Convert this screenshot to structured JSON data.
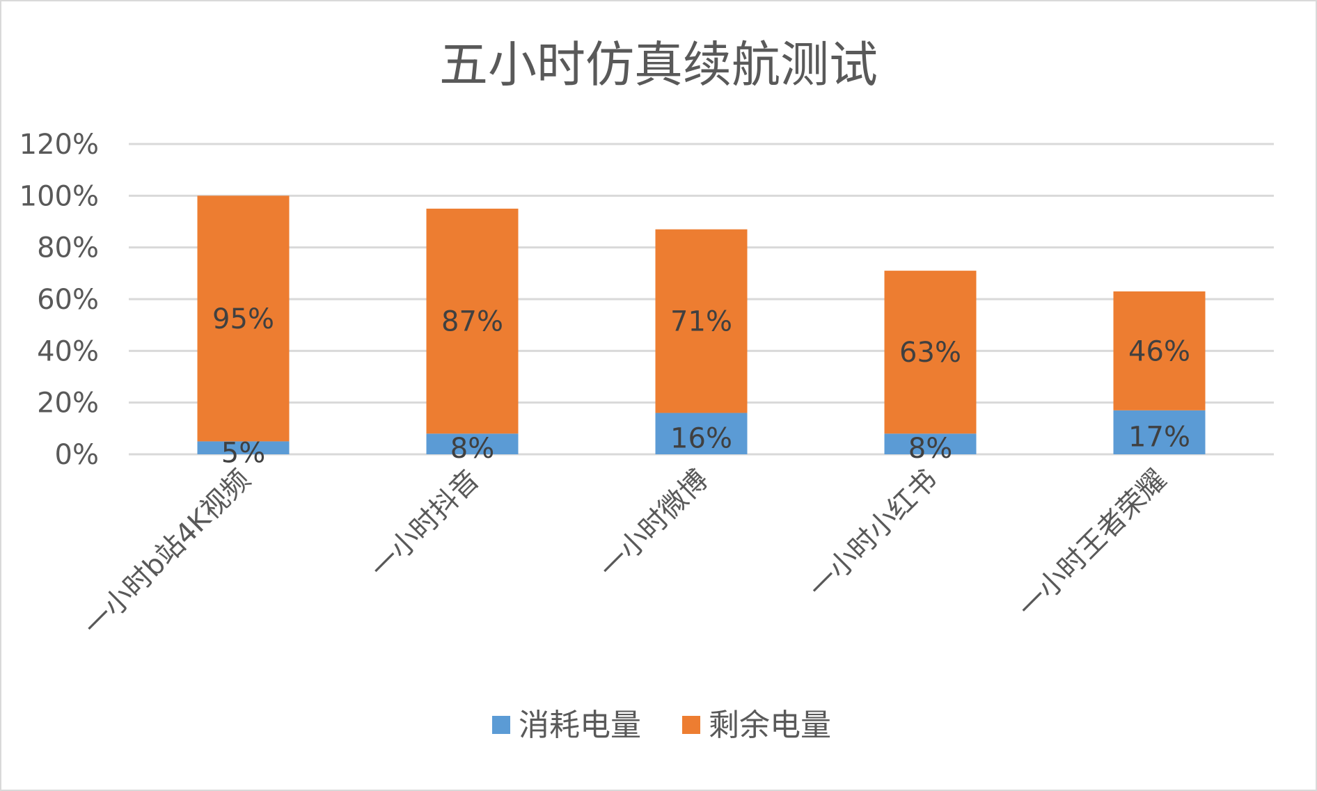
{
  "chart_data": {
    "type": "bar",
    "stacked": true,
    "title": "五小时仿真续航测试",
    "xlabel": "",
    "ylabel": "",
    "ylim": [
      0,
      120
    ],
    "yticks": [
      "0%",
      "20%",
      "40%",
      "60%",
      "80%",
      "100%",
      "120%"
    ],
    "categories": [
      "一小时b站4K视频",
      "一小时抖音",
      "一小时微博",
      "一小时小红书",
      "一小时王者荣耀"
    ],
    "series": [
      {
        "name": "消耗电量",
        "color": "#5b9bd5",
        "values": [
          5,
          8,
          16,
          8,
          17
        ],
        "labels": [
          "5%",
          "8%",
          "16%",
          "8%",
          "17%"
        ]
      },
      {
        "name": "剩余电量",
        "color": "#ed7d31",
        "values": [
          95,
          87,
          71,
          63,
          46
        ],
        "labels": [
          "95%",
          "87%",
          "71%",
          "63%",
          "46%"
        ]
      }
    ],
    "grid": true,
    "legend_position": "bottom"
  }
}
